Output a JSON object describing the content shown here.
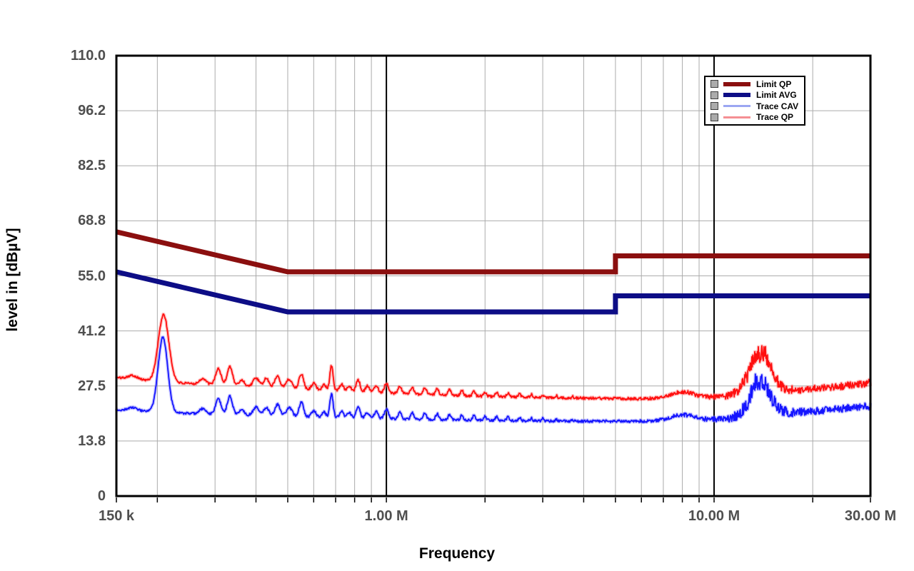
{
  "axes": {
    "x": {
      "title": "Frequency",
      "scale": "log",
      "min_mhz": 0.15,
      "max_mhz": 30,
      "tick_labels": [
        {
          "f_mhz": 0.15,
          "label": "150 k"
        },
        {
          "f_mhz": 1,
          "label": "1.00 M"
        },
        {
          "f_mhz": 10,
          "label": "10.00 M"
        },
        {
          "f_mhz": 30,
          "label": "30.00 M"
        }
      ],
      "minor_gridlines_mhz": [
        0.2,
        0.3,
        0.4,
        0.5,
        0.6,
        0.7,
        0.8,
        0.9,
        2,
        3,
        4,
        5,
        6,
        7,
        8,
        9,
        20
      ],
      "major_gridlines_mhz": [
        1,
        10
      ]
    },
    "y": {
      "title": "level in [dBµV]",
      "min": 0,
      "max": 110,
      "tick_labels": [
        {
          "v": 110,
          "label": "110.0"
        },
        {
          "v": 96.25,
          "label": "96.2"
        },
        {
          "v": 82.5,
          "label": "82.5"
        },
        {
          "v": 68.75,
          "label": "68.8"
        },
        {
          "v": 55,
          "label": "55.0"
        },
        {
          "v": 41.25,
          "label": "41.2"
        },
        {
          "v": 27.5,
          "label": "27.5"
        },
        {
          "v": 13.75,
          "label": "13.8"
        },
        {
          "v": 0,
          "label": "0"
        }
      ],
      "gridlines": [
        96.25,
        82.5,
        68.75,
        55,
        41.25,
        27.5,
        13.75
      ]
    }
  },
  "legend": {
    "items": [
      {
        "label": "Limit QP",
        "color": "#8b0f0f",
        "sample_height": 6
      },
      {
        "label": "Limit AVG",
        "color": "#0d0d86",
        "sample_height": 6
      },
      {
        "label": "Trace CAV",
        "color": "#9ba6f2",
        "sample_height": 3
      },
      {
        "label": "Trace QP",
        "color": "#f58f93",
        "sample_height": 3
      }
    ]
  },
  "styles": {
    "frame_color": "#000000",
    "minor_grid_color": "#ababab",
    "major_grid_color": "#000000",
    "tick_label_color": "#4f4f4f",
    "limit_qp_color": "#8b0f0f",
    "limit_avg_color": "#0d0d86",
    "trace_qp_color": "#ff0f0f",
    "trace_qp_halo": "#ff7070",
    "trace_cav_color": "#1515ff",
    "trace_cav_halo": "#7878ff"
  },
  "chart_data": {
    "type": "line",
    "title": "",
    "xlabel": "Frequency",
    "ylabel": "level in [dBµV]",
    "x_scale": "log",
    "x_range_mhz": [
      0.15,
      30
    ],
    "y_range": [
      0,
      110
    ],
    "grid": true,
    "legend_position": "top-right",
    "series": [
      {
        "name": "Limit QP",
        "kind": "limit",
        "color": "#8b0f0f",
        "width": 7,
        "points_f_mhz_level_dbuv": [
          [
            0.15,
            66
          ],
          [
            0.5,
            56
          ],
          [
            5,
            56
          ],
          [
            5,
            60
          ],
          [
            30,
            60
          ]
        ]
      },
      {
        "name": "Limit AVG",
        "kind": "limit",
        "color": "#0d0d86",
        "width": 7,
        "points_f_mhz_level_dbuv": [
          [
            0.15,
            56
          ],
          [
            0.5,
            46
          ],
          [
            5,
            46
          ],
          [
            5,
            50
          ],
          [
            30,
            50
          ]
        ]
      },
      {
        "name": "Trace CAV",
        "kind": "trace",
        "color": "#1515ff",
        "halo": "#7878ff",
        "seed": 202,
        "baseline_f_mhz_level": [
          [
            0.15,
            21.5
          ],
          [
            0.22,
            20.8
          ],
          [
            0.3,
            20.4
          ],
          [
            0.4,
            20.1
          ],
          [
            0.55,
            19.8
          ],
          [
            0.8,
            19.5
          ],
          [
            1.2,
            19.2
          ],
          [
            2,
            18.9
          ],
          [
            3.5,
            18.7
          ],
          [
            6,
            18.7
          ],
          [
            9,
            19.0
          ],
          [
            11,
            19.3
          ],
          [
            12.5,
            19.9
          ],
          [
            14,
            20.6
          ],
          [
            16,
            20.7
          ],
          [
            20,
            21.2
          ],
          [
            25,
            21.9
          ],
          [
            30,
            22.4
          ]
        ],
        "peaks_f_amp_width": [
          [
            0.168,
            0.8,
            0.015
          ],
          [
            0.208,
            18.8,
            0.0145
          ],
          [
            0.275,
            1.3,
            0.01
          ],
          [
            0.307,
            3.8,
            0.0085
          ],
          [
            0.333,
            4.6,
            0.008
          ],
          [
            0.362,
            1.4,
            0.008
          ],
          [
            0.4,
            2.1,
            0.009
          ],
          [
            0.43,
            2.1,
            0.008
          ],
          [
            0.465,
            2.9,
            0.008
          ],
          [
            0.505,
            2.2,
            0.009
          ],
          [
            0.55,
            3.6,
            0.007
          ],
          [
            0.6,
            1.5,
            0.007
          ],
          [
            0.645,
            1.3,
            0.006
          ],
          [
            0.68,
            5.9,
            0.005
          ],
          [
            0.73,
            1.6,
            0.006
          ],
          [
            0.77,
            1.3,
            0.006
          ],
          [
            0.82,
            2.8,
            0.006
          ],
          [
            0.875,
            1.4,
            0.006
          ],
          [
            0.93,
            1.7,
            0.006
          ],
          [
            1.0,
            2.3,
            0.006
          ],
          [
            1.1,
            1.7,
            0.005
          ],
          [
            1.2,
            1.6,
            0.005
          ],
          [
            1.31,
            1.5,
            0.005
          ],
          [
            1.43,
            1.4,
            0.0045
          ],
          [
            1.56,
            1.3,
            0.0045
          ],
          [
            1.7,
            1.25,
            0.004
          ],
          [
            1.85,
            1.15,
            0.004
          ],
          [
            2.0,
            1.05,
            0.004
          ],
          [
            2.17,
            0.95,
            0.004
          ],
          [
            2.35,
            0.85,
            0.004
          ],
          [
            2.55,
            0.75,
            0.0035
          ],
          [
            2.77,
            0.65,
            0.0035
          ],
          [
            3.0,
            0.6,
            0.0035
          ],
          [
            3.3,
            0.5,
            0.003
          ],
          [
            3.7,
            0.4,
            0.003
          ],
          [
            8.0,
            1.4,
            0.035
          ],
          [
            13.8,
            6.6,
            0.032
          ],
          [
            13.3,
            1.8,
            0.008
          ],
          [
            14.4,
            1.6,
            0.009
          ]
        ],
        "noise_f_amp": [
          [
            0.15,
            0.25
          ],
          [
            0.5,
            0.3
          ],
          [
            1,
            0.3
          ],
          [
            3,
            0.3
          ],
          [
            6,
            0.35
          ],
          [
            8,
            0.45
          ],
          [
            9.5,
            0.55
          ],
          [
            11,
            0.9
          ],
          [
            12,
            1.4
          ],
          [
            13,
            2.4
          ],
          [
            14,
            2.6
          ],
          [
            15,
            1.9
          ],
          [
            16,
            1.3
          ],
          [
            18,
            1.0
          ],
          [
            22,
            0.85
          ],
          [
            30,
            0.95
          ]
        ]
      },
      {
        "name": "Trace QP",
        "kind": "trace",
        "color": "#ff0f0f",
        "halo": "#ff7070",
        "seed": 101,
        "baseline_f_mhz_level": [
          [
            0.15,
            29.6
          ],
          [
            0.22,
            28.3
          ],
          [
            0.3,
            27.8
          ],
          [
            0.4,
            27.3
          ],
          [
            0.55,
            26.7
          ],
          [
            0.8,
            26.1
          ],
          [
            1.2,
            25.5
          ],
          [
            2,
            24.9
          ],
          [
            3.5,
            24.5
          ],
          [
            6,
            24.3
          ],
          [
            9,
            24.6
          ],
          [
            11,
            24.9
          ],
          [
            12.5,
            25.6
          ],
          [
            14,
            26.3
          ],
          [
            16,
            26.2
          ],
          [
            20,
            26.8
          ],
          [
            25,
            27.5
          ],
          [
            30,
            28.3
          ]
        ],
        "peaks_f_amp_width": [
          [
            0.168,
            0.9,
            0.015
          ],
          [
            0.209,
            16.8,
            0.016
          ],
          [
            0.275,
            1.4,
            0.01
          ],
          [
            0.307,
            4.0,
            0.0085
          ],
          [
            0.333,
            4.8,
            0.008
          ],
          [
            0.362,
            1.5,
            0.008
          ],
          [
            0.4,
            2.2,
            0.009
          ],
          [
            0.43,
            2.2,
            0.008
          ],
          [
            0.465,
            3.0,
            0.008
          ],
          [
            0.505,
            2.3,
            0.009
          ],
          [
            0.55,
            3.8,
            0.007
          ],
          [
            0.6,
            1.6,
            0.007
          ],
          [
            0.645,
            1.4,
            0.006
          ],
          [
            0.68,
            6.2,
            0.005
          ],
          [
            0.73,
            1.7,
            0.006
          ],
          [
            0.77,
            1.4,
            0.006
          ],
          [
            0.82,
            2.9,
            0.006
          ],
          [
            0.875,
            1.5,
            0.006
          ],
          [
            0.93,
            1.8,
            0.006
          ],
          [
            1.0,
            2.4,
            0.006
          ],
          [
            1.1,
            1.8,
            0.005
          ],
          [
            1.2,
            1.7,
            0.005
          ],
          [
            1.31,
            1.6,
            0.005
          ],
          [
            1.43,
            1.5,
            0.0045
          ],
          [
            1.56,
            1.4,
            0.0045
          ],
          [
            1.7,
            1.3,
            0.004
          ],
          [
            1.85,
            1.2,
            0.004
          ],
          [
            2.0,
            1.1,
            0.004
          ],
          [
            2.17,
            1.0,
            0.004
          ],
          [
            2.35,
            0.9,
            0.004
          ],
          [
            2.55,
            0.8,
            0.0035
          ],
          [
            2.77,
            0.7,
            0.0035
          ],
          [
            3.0,
            0.6,
            0.0035
          ],
          [
            3.3,
            0.5,
            0.003
          ],
          [
            3.7,
            0.4,
            0.003
          ],
          [
            8.0,
            1.5,
            0.035
          ],
          [
            13.8,
            8.3,
            0.034
          ],
          [
            13.3,
            2.0,
            0.008
          ],
          [
            14.4,
            1.8,
            0.009
          ]
        ],
        "noise_f_amp": [
          [
            0.15,
            0.25
          ],
          [
            0.5,
            0.3
          ],
          [
            1,
            0.3
          ],
          [
            3,
            0.3
          ],
          [
            6,
            0.35
          ],
          [
            8,
            0.45
          ],
          [
            9.5,
            0.55
          ],
          [
            11,
            0.8
          ],
          [
            12,
            1.3
          ],
          [
            13,
            2.2
          ],
          [
            14,
            2.4
          ],
          [
            15,
            1.7
          ],
          [
            16,
            1.2
          ],
          [
            18,
            0.9
          ],
          [
            22,
            0.8
          ],
          [
            30,
            0.95
          ]
        ]
      }
    ]
  }
}
